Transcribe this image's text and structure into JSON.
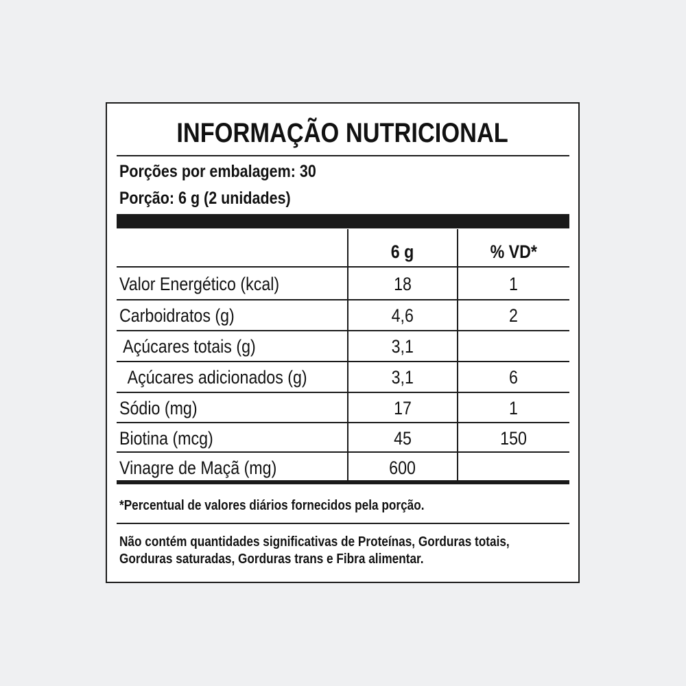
{
  "title": "INFORMAÇÃO NUTRICIONAL",
  "servings_per_package": "Porções por embalagem: 30",
  "serving_size": "Porção: 6 g (2 unidades)",
  "table": {
    "headers": [
      "",
      "6 g",
      "% VD*"
    ],
    "rows": [
      {
        "name": "Valor Energético (kcal)",
        "amount": "18",
        "dv": "1"
      },
      {
        "name": "Carboidratos (g)",
        "amount": "4,6",
        "dv": "2"
      },
      {
        "name": " Açúcares totais (g)",
        "amount": "3,1",
        "dv": ""
      },
      {
        "name": "  Açúcares adicionados (g)",
        "amount": "3,1",
        "dv": "6"
      },
      {
        "name": "Sódio (mg)",
        "amount": "17",
        "dv": "1"
      },
      {
        "name": "Biotina (mcg)",
        "amount": "45",
        "dv": "150"
      },
      {
        "name": "Vinagre de Maçã (mg)",
        "amount": "600",
        "dv": ""
      }
    ]
  },
  "footnote": "*Percentual de valores diários fornecidos pela porção.",
  "disclaimer_line1": "Não contém quantidades significativas de Proteínas, Gorduras totais,",
  "disclaimer_line2": "Gorduras saturadas, Gorduras trans e Fibra alimentar."
}
